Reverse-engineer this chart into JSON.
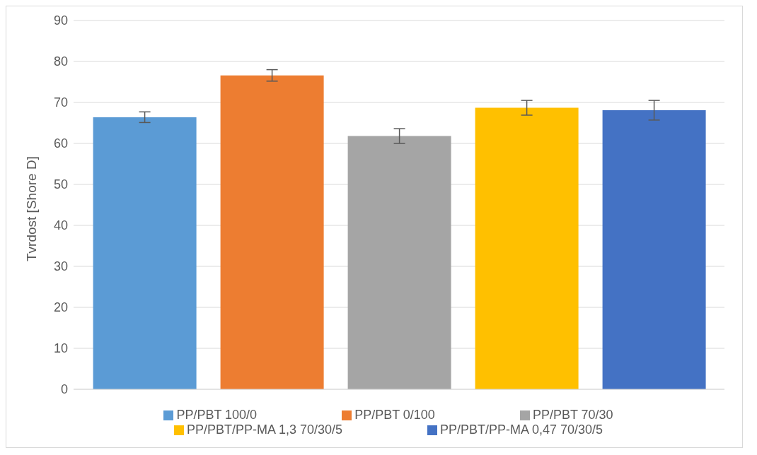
{
  "chart_data": {
    "type": "bar",
    "ylabel": "Tvrdost [Shore D]",
    "categories": [
      null
    ],
    "series": [
      {
        "name": "PP/PBT 100/0",
        "color": "#5b9bd5",
        "values": [
          66.4
        ],
        "errors": [
          1.3
        ]
      },
      {
        "name": "PP/PBT 0/100",
        "color": "#ed7d31",
        "values": [
          76.6
        ],
        "errors": [
          1.4
        ]
      },
      {
        "name": "PP/PBT 70/30",
        "color": "#a5a5a5",
        "values": [
          61.8
        ],
        "errors": [
          1.8
        ]
      },
      {
        "name": "PP/PBT/PP-MA 1,3 70/30/5",
        "color": "#ffc000",
        "values": [
          68.7
        ],
        "errors": [
          1.8
        ]
      },
      {
        "name": "PP/PBT/PP-MA 0,47 70/30/5",
        "color": "#4472c4",
        "values": [
          68.1
        ],
        "errors": [
          2.4
        ]
      }
    ],
    "ylim": [
      0,
      90
    ],
    "yticks": [
      0,
      10,
      20,
      30,
      40,
      50,
      60,
      70,
      80,
      90
    ],
    "grid": "y",
    "legend": "bottom"
  }
}
